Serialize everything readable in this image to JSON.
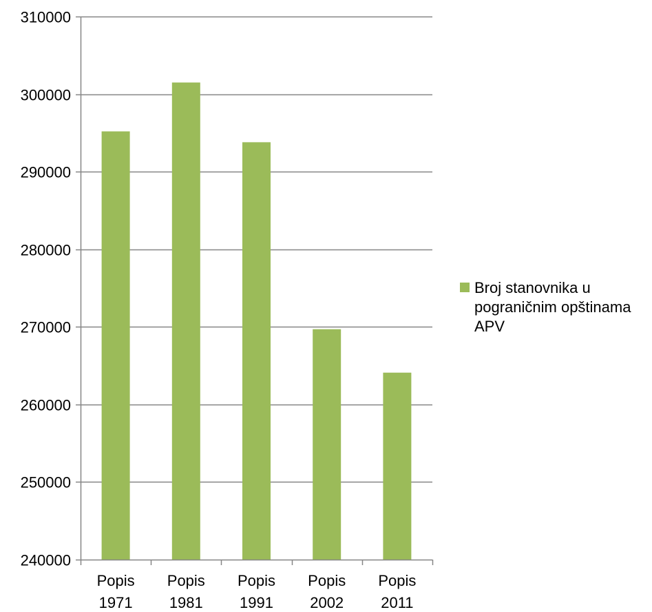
{
  "chart_data": {
    "type": "bar",
    "categories": [
      [
        "Popis",
        "1971"
      ],
      [
        "Popis",
        "1981"
      ],
      [
        "Popis",
        "1991"
      ],
      [
        "Popis",
        "2002"
      ],
      [
        "Popis",
        "2011"
      ]
    ],
    "series": [
      {
        "name": "Broj stanovnika u pograničnim opštinama APV",
        "values": [
          295200,
          301500,
          293800,
          269700,
          264100
        ],
        "color": "#9bbb59"
      }
    ],
    "ylim": [
      240000,
      310000
    ],
    "yticks": [
      "240000",
      "250000",
      "260000",
      "270000",
      "280000",
      "290000",
      "300000",
      "310000"
    ],
    "ytick_values": [
      240000,
      250000,
      260000,
      270000,
      280000,
      290000,
      300000,
      310000
    ],
    "grid": true,
    "legend_position": "right",
    "title": "",
    "xlabel": "",
    "ylabel": ""
  }
}
